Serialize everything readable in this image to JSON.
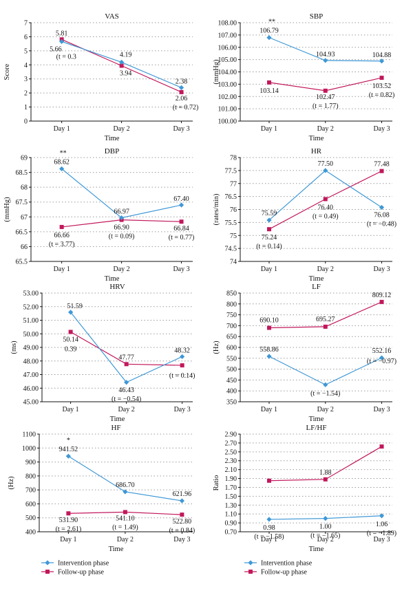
{
  "colors": {
    "intervention": "#3f98d6",
    "followup": "#c2185b"
  },
  "legend": [
    {
      "label": "Intervention phase",
      "color": "#3f98d6",
      "marker": "diamond"
    },
    {
      "label": "Follow-up phase",
      "color": "#c2185b",
      "marker": "square"
    }
  ],
  "chart_data": [
    {
      "type": "line",
      "title": "VAS",
      "xlabel": "Time",
      "ylabel": "Score",
      "categories": [
        "Day 1",
        "Day 2",
        "Day 3"
      ],
      "ylim": [
        0,
        7
      ],
      "yticks": [
        "0",
        "1",
        "2",
        "3",
        "4",
        "5",
        "6",
        "7"
      ],
      "series": [
        {
          "name": "Intervention phase",
          "values": [
            5.66,
            4.19,
            2.38
          ]
        },
        {
          "name": "Follow-up phase",
          "values": [
            5.81,
            3.94,
            2.06
          ]
        }
      ],
      "annotations": [
        "5.81",
        "5.66",
        "(t = 0.3",
        "4.19",
        "3.94",
        "2.38",
        "2.06",
        "(t = 0.72)"
      ]
    },
    {
      "type": "line",
      "title": "SBP",
      "xlabel": "Time",
      "ylabel": "(mmHg)",
      "categories": [
        "Day 1",
        "Day 2",
        "Day 3"
      ],
      "ylim": [
        100,
        108
      ],
      "yticks": [
        "100.00",
        "101.00",
        "102.00",
        "103.00",
        "104.00",
        "105.00",
        "106.00",
        "107.00",
        "108.00"
      ],
      "series": [
        {
          "name": "Intervention phase",
          "values": [
            106.79,
            104.93,
            104.88
          ]
        },
        {
          "name": "Follow-up phase",
          "values": [
            103.14,
            102.47,
            103.52
          ]
        }
      ],
      "annotations": [
        "**",
        "106.79",
        "104.93",
        "104.88",
        "103.14",
        "102.47",
        "(t = 1.77)",
        "103.52",
        "(t = 0.82)"
      ]
    },
    {
      "type": "line",
      "title": "DBP",
      "xlabel": "Time",
      "ylabel": "(mmHg)",
      "categories": [
        "Day 1",
        "Day 2",
        "Day 3"
      ],
      "ylim": [
        65.5,
        69
      ],
      "yticks": [
        "65.5",
        "66",
        "66.5",
        "67",
        "67.5",
        "68",
        "68.5",
        "69"
      ],
      "series": [
        {
          "name": "Intervention phase",
          "values": [
            68.62,
            66.97,
            67.4
          ]
        },
        {
          "name": "Follow-up phase",
          "values": [
            66.66,
            66.9,
            66.84
          ]
        }
      ],
      "annotations": [
        "**",
        "68.62",
        "66.97",
        "67.40",
        "66.66",
        "(t = 3.77)",
        "66.90",
        "(t = 0.09)",
        "66.84",
        "(t = 0.77)"
      ]
    },
    {
      "type": "line",
      "title": "HR",
      "xlabel": "Time",
      "ylabel": "(rates/min)",
      "categories": [
        "Day 1",
        "Day 2",
        "Day 3"
      ],
      "ylim": [
        74,
        78
      ],
      "yticks": [
        "74",
        "74.5",
        "75",
        "75.5",
        "76",
        "76.5",
        "77",
        "77.5",
        "78"
      ],
      "series": [
        {
          "name": "Intervention phase",
          "values": [
            75.59,
            77.5,
            76.08
          ]
        },
        {
          "name": "Follow-up phase",
          "values": [
            75.24,
            76.4,
            77.48
          ]
        }
      ],
      "annotations": [
        "75.59",
        "75.24",
        "(t = 0.14)",
        "77.50",
        "76.40",
        "(t = 0.49)",
        "77.48",
        "76.08",
        "(t = −0.48)"
      ]
    },
    {
      "type": "line",
      "title": "HRV",
      "xlabel": "Time",
      "ylabel": "(ms)",
      "categories": [
        "Day 1",
        "Day 2",
        "Day 3"
      ],
      "ylim": [
        45,
        53
      ],
      "yticks": [
        "45.00",
        "46.00",
        "47.00",
        "48.00",
        "49.00",
        "50.00",
        "51.00",
        "52.00",
        "53.00"
      ],
      "series": [
        {
          "name": "Intervention phase",
          "values": [
            51.59,
            46.43,
            48.32
          ]
        },
        {
          "name": "Follow-up phase",
          "values": [
            50.14,
            47.77,
            47.68
          ]
        }
      ],
      "annotations": [
        "51.59",
        "50.14",
        "0.39",
        "47.77",
        "46.43",
        "(t = −0.54)",
        "48.32",
        "(t = 0.14)"
      ]
    },
    {
      "type": "line",
      "title": "LF",
      "xlabel": "Time",
      "ylabel": "(Hz)",
      "categories": [
        "Day 1",
        "Day 2",
        "Day 3"
      ],
      "ylim": [
        350,
        850
      ],
      "yticks": [
        "350",
        "400",
        "450",
        "500",
        "550",
        "600",
        "650",
        "700",
        "750",
        "800",
        "850"
      ],
      "series": [
        {
          "name": "Intervention phase",
          "values": [
            558.86,
            428.33,
            552.16
          ]
        },
        {
          "name": "Follow-up phase",
          "values": [
            690.1,
            695.27,
            809.12
          ]
        }
      ],
      "annotations": [
        "690.10",
        "695.27",
        "809.12",
        "558.86",
        "552.16",
        "(t = −0.97)",
        "(t = −1.54)"
      ]
    },
    {
      "type": "line",
      "title": "HF",
      "xlabel": "Time",
      "ylabel": "(Hz)",
      "categories": [
        "Day 1",
        "Day 2",
        "Day 3"
      ],
      "ylim": [
        400,
        1100
      ],
      "yticks": [
        "400",
        "500",
        "600",
        "700",
        "800",
        "900",
        "1000",
        "1100"
      ],
      "series": [
        {
          "name": "Intervention phase",
          "values": [
            941.52,
            686.7,
            621.96
          ]
        },
        {
          "name": "Follow-up phase",
          "values": [
            531.9,
            541.1,
            522.8
          ]
        }
      ],
      "annotations": [
        "*",
        "941.52",
        "686.70",
        "621.96",
        "531.90",
        "(t = 2.61)",
        "541.10",
        "(t = 1.49)",
        "522.80",
        "(t = 0.84)"
      ]
    },
    {
      "type": "line",
      "title": "LF/HF",
      "xlabel": "Time",
      "ylabel": "Ratio",
      "categories": [
        "Day 1",
        "Day 2",
        "Day 3"
      ],
      "ylim": [
        0.7,
        2.9
      ],
      "yticks": [
        "0.70",
        "0.90",
        "1.10",
        "1.30",
        "1.50",
        "1.70",
        "1.90",
        "2.10",
        "2.30",
        "2.50",
        "2.70",
        "2.90"
      ],
      "series": [
        {
          "name": "Intervention phase",
          "values": [
            0.98,
            1.0,
            1.06
          ]
        },
        {
          "name": "Follow-up phase",
          "values": [
            1.85,
            1.88,
            2.62
          ]
        }
      ],
      "annotations": [
        "1.88",
        "0.98",
        "(t = −1.58)",
        "1.00",
        "(t = −1.65)",
        "1.06",
        "(t = −1.89)"
      ]
    }
  ]
}
